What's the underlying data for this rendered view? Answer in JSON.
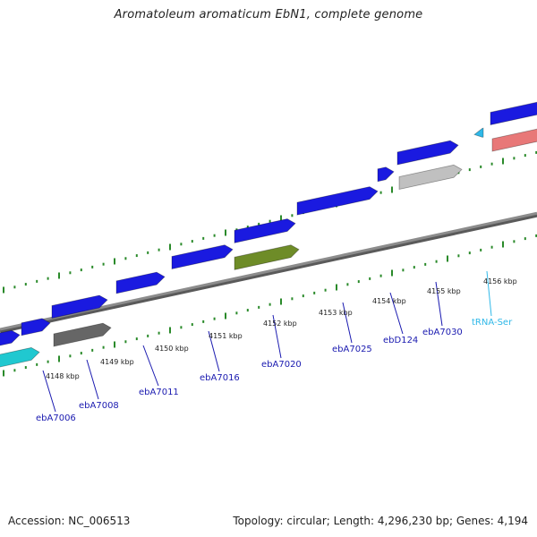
{
  "title": "Aromatoleum aromaticum EbN1, complete genome",
  "footer": {
    "accession": "Accession: NC_006513",
    "summary": "Topology: circular; Length: 4,296,230 bp; Genes: 4,194"
  },
  "colors": {
    "forward_gene": "#1a1ae0",
    "genome_line": "#8c8c8c",
    "tick": "#2a8a2a",
    "label": "#1a1ab0",
    "trna_label": "#2fb8e8"
  },
  "kbp_labels": [
    "4148 kbp",
    "4149 kbp",
    "4150 kbp",
    "4151 kbp",
    "4152 kbp",
    "4153 kbp",
    "4154 kbp",
    "4155 kbp",
    "4156 kbp"
  ],
  "gene_labels": [
    {
      "text": "ebA7006",
      "color": "#1a1ab0"
    },
    {
      "text": "ebA7008",
      "color": "#1a1ab0"
    },
    {
      "text": "ebA7011",
      "color": "#1a1ab0"
    },
    {
      "text": "ebA7016",
      "color": "#1a1ab0"
    },
    {
      "text": "ebA7020",
      "color": "#1a1ab0"
    },
    {
      "text": "ebA7025",
      "color": "#1a1ab0"
    },
    {
      "text": "ebD124",
      "color": "#1a1ab0"
    },
    {
      "text": "ebA7030",
      "color": "#1a1ab0"
    },
    {
      "text": "tRNA-Ser",
      "color": "#2fb8e8"
    }
  ],
  "features": [
    {
      "name": "forward-gene-1",
      "color": "#1a1ae0"
    },
    {
      "name": "forward-gene-2",
      "color": "#1a1ae0"
    },
    {
      "name": "forward-gene-3",
      "color": "#1a1ae0"
    },
    {
      "name": "forward-gene-4",
      "color": "#1a1ae0"
    },
    {
      "name": "forward-gene-5",
      "color": "#1a1ae0"
    },
    {
      "name": "forward-gene-6",
      "color": "#1a1ae0"
    },
    {
      "name": "forward-gene-7",
      "color": "#1a1ae0"
    },
    {
      "name": "forward-gene-8",
      "color": "#1a1ae0"
    },
    {
      "name": "forward-gene-9",
      "color": "#1a1ae0"
    },
    {
      "name": "forward-gene-10",
      "color": "#1a1ae0"
    },
    {
      "name": "trna-feature",
      "color": "#2fb8e8"
    },
    {
      "name": "reverse-gene-cyan",
      "color": "#20c8d0"
    },
    {
      "name": "reverse-gene-dark-gray",
      "color": "#666666"
    },
    {
      "name": "reverse-gene-olive",
      "color": "#6e8c28"
    },
    {
      "name": "reverse-gene-light-gray",
      "color": "#c0c0c0"
    },
    {
      "name": "reverse-gene-pink",
      "color": "#e87878"
    }
  ]
}
